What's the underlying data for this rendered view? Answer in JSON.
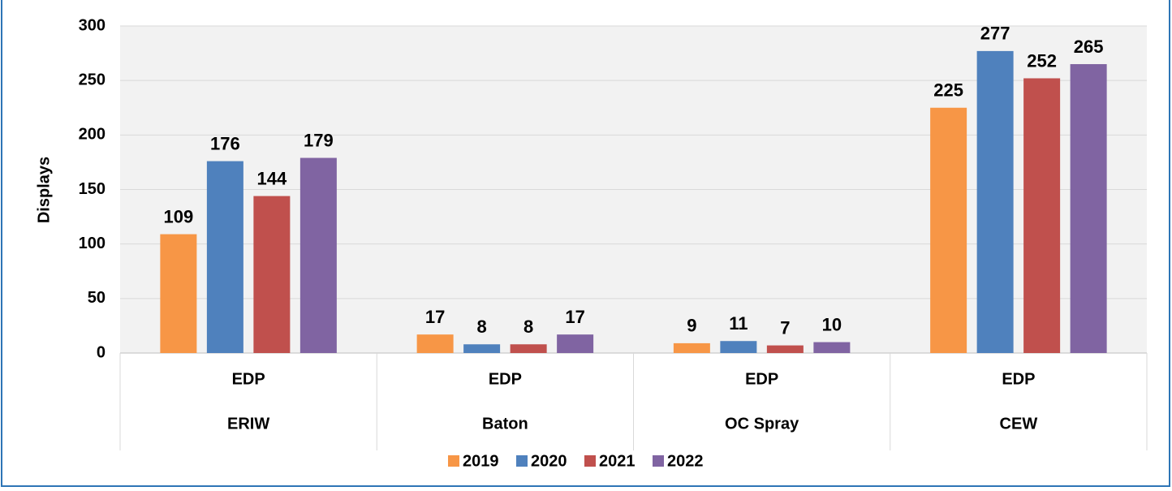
{
  "chart_data": {
    "type": "bar",
    "y_label": "Displays",
    "subcategories": [
      "EDP",
      "EDP",
      "EDP",
      "EDP"
    ],
    "categories": [
      "ERIW",
      "Baton",
      "OC Spray",
      "CEW"
    ],
    "series": [
      {
        "name": "2019",
        "color": "#f79646",
        "values": [
          109,
          17,
          9,
          225
        ]
      },
      {
        "name": "2020",
        "color": "#4f81bd",
        "values": [
          176,
          8,
          11,
          277
        ]
      },
      {
        "name": "2021",
        "color": "#c0504d",
        "values": [
          144,
          8,
          7,
          252
        ]
      },
      {
        "name": "2022",
        "color": "#8064a2",
        "values": [
          179,
          17,
          10,
          265
        ]
      }
    ],
    "ylim": [
      0,
      300
    ],
    "yticks": [
      0,
      50,
      100,
      150,
      200,
      250,
      300
    ],
    "grid": true,
    "legend": "bottom"
  }
}
